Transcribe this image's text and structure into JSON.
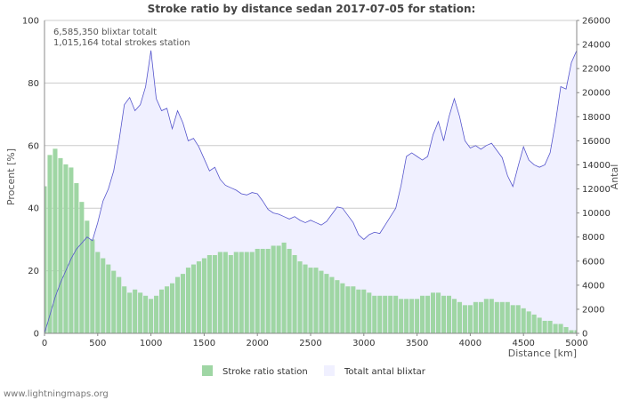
{
  "chart_data": {
    "type": "bar+area",
    "title": "Stroke ratio by distance sedan 2017-07-05 for station:",
    "annotations": [
      "6,585,350 blixtar totalt",
      "1,015,164 total strokes station"
    ],
    "xlabel": "Distance   [km]",
    "ylabel_left": "Procent   [%]",
    "ylabel_right": "Antal",
    "xlim": [
      0,
      5000
    ],
    "ylim_left": [
      0,
      100
    ],
    "ylim_right": [
      0,
      26000
    ],
    "x_ticks": [
      "0",
      "500",
      "1000",
      "1500",
      "2000",
      "2500",
      "3000",
      "3500",
      "4000",
      "4500",
      "5000"
    ],
    "y_left_ticks": [
      "0",
      "20",
      "40",
      "60",
      "80",
      "100"
    ],
    "y_right_ticks": [
      "0",
      "2000",
      "4000",
      "6000",
      "8000",
      "10000",
      "12000",
      "14000",
      "16000",
      "18000",
      "20000",
      "22000",
      "24000",
      "26000"
    ],
    "grid": true,
    "legend_position": "bottom",
    "series": [
      {
        "name": "Stroke ratio station",
        "kind": "bar",
        "axis": "left",
        "color": "#9fd6a4",
        "x": [
          0,
          50,
          100,
          150,
          200,
          250,
          300,
          350,
          400,
          450,
          500,
          550,
          600,
          650,
          700,
          750,
          800,
          850,
          900,
          950,
          1000,
          1050,
          1100,
          1150,
          1200,
          1250,
          1300,
          1350,
          1400,
          1450,
          1500,
          1550,
          1600,
          1650,
          1700,
          1750,
          1800,
          1850,
          1900,
          1950,
          2000,
          2050,
          2100,
          2150,
          2200,
          2250,
          2300,
          2350,
          2400,
          2450,
          2500,
          2550,
          2600,
          2650,
          2700,
          2750,
          2800,
          2850,
          2900,
          2950,
          3000,
          3050,
          3100,
          3150,
          3200,
          3250,
          3300,
          3350,
          3400,
          3450,
          3500,
          3550,
          3600,
          3650,
          3700,
          3750,
          3800,
          3850,
          3900,
          3950,
          4000,
          4050,
          4100,
          4150,
          4200,
          4250,
          4300,
          4350,
          4400,
          4450,
          4500,
          4550,
          4600,
          4650,
          4700,
          4750,
          4800,
          4850,
          4900,
          4950,
          5000
        ],
        "values": [
          47,
          57,
          59,
          56,
          54,
          53,
          48,
          42,
          36,
          30,
          26,
          24,
          22,
          20,
          18,
          15,
          13,
          14,
          13,
          12,
          11,
          12,
          14,
          15,
          16,
          18,
          19,
          21,
          22,
          23,
          24,
          25,
          25,
          26,
          26,
          25,
          26,
          26,
          26,
          26,
          27,
          27,
          27,
          28,
          28,
          29,
          27,
          25,
          23,
          22,
          21,
          21,
          20,
          19,
          18,
          17,
          16,
          15,
          15,
          14,
          14,
          13,
          12,
          12,
          12,
          12,
          12,
          11,
          11,
          11,
          11,
          12,
          12,
          13,
          13,
          12,
          12,
          11,
          10,
          9,
          9,
          10,
          10,
          11,
          11,
          10,
          10,
          10,
          9,
          9,
          8,
          7,
          6,
          5,
          4,
          4,
          3,
          3,
          2,
          1,
          1
        ]
      },
      {
        "name": "Totalt antal blixtar",
        "kind": "area",
        "axis": "right",
        "color": "#5555cc",
        "fill": "#f0f0ff",
        "x": [
          0,
          50,
          100,
          150,
          200,
          250,
          300,
          350,
          400,
          450,
          500,
          550,
          600,
          650,
          700,
          750,
          800,
          850,
          900,
          950,
          1000,
          1050,
          1100,
          1150,
          1200,
          1250,
          1300,
          1350,
          1400,
          1450,
          1500,
          1550,
          1600,
          1650,
          1700,
          1750,
          1800,
          1850,
          1900,
          1950,
          2000,
          2050,
          2100,
          2150,
          2200,
          2250,
          2300,
          2350,
          2400,
          2450,
          2500,
          2550,
          2600,
          2650,
          2700,
          2750,
          2800,
          2850,
          2900,
          2950,
          3000,
          3050,
          3100,
          3150,
          3200,
          3250,
          3300,
          3350,
          3400,
          3450,
          3500,
          3550,
          3600,
          3650,
          3700,
          3750,
          3800,
          3850,
          3900,
          3950,
          4000,
          4050,
          4100,
          4150,
          4200,
          4250,
          4300,
          4350,
          4400,
          4450,
          4500,
          4550,
          4600,
          4650,
          4700,
          4750,
          4800,
          4850,
          4900,
          4950,
          5000
        ],
        "values": [
          0,
          1500,
          3000,
          4200,
          5200,
          6200,
          7000,
          7500,
          8000,
          7700,
          9200,
          11000,
          12000,
          13500,
          16000,
          19000,
          19600,
          18500,
          19000,
          20500,
          23500,
          19500,
          18500,
          18700,
          17000,
          18500,
          17500,
          16000,
          16200,
          15500,
          14500,
          13500,
          13800,
          12800,
          12300,
          12100,
          11900,
          11600,
          11500,
          11700,
          11600,
          11000,
          10300,
          10000,
          9900,
          9700,
          9500,
          9700,
          9400,
          9200,
          9400,
          9200,
          9000,
          9300,
          9900,
          10500,
          10400,
          9800,
          9200,
          8200,
          7800,
          8200,
          8400,
          8300,
          9000,
          9700,
          10400,
          12300,
          14700,
          15000,
          14700,
          14400,
          14700,
          16500,
          17600,
          16000,
          18000,
          19500,
          18000,
          16000,
          15400,
          15600,
          15300,
          15600,
          15800,
          15200,
          14600,
          13100,
          12200,
          13900,
          15500,
          14400,
          14000,
          13800,
          14000,
          15000,
          17500,
          20500,
          20300,
          22500,
          23500
        ]
      }
    ]
  },
  "footer": "www.lightningmaps.org"
}
